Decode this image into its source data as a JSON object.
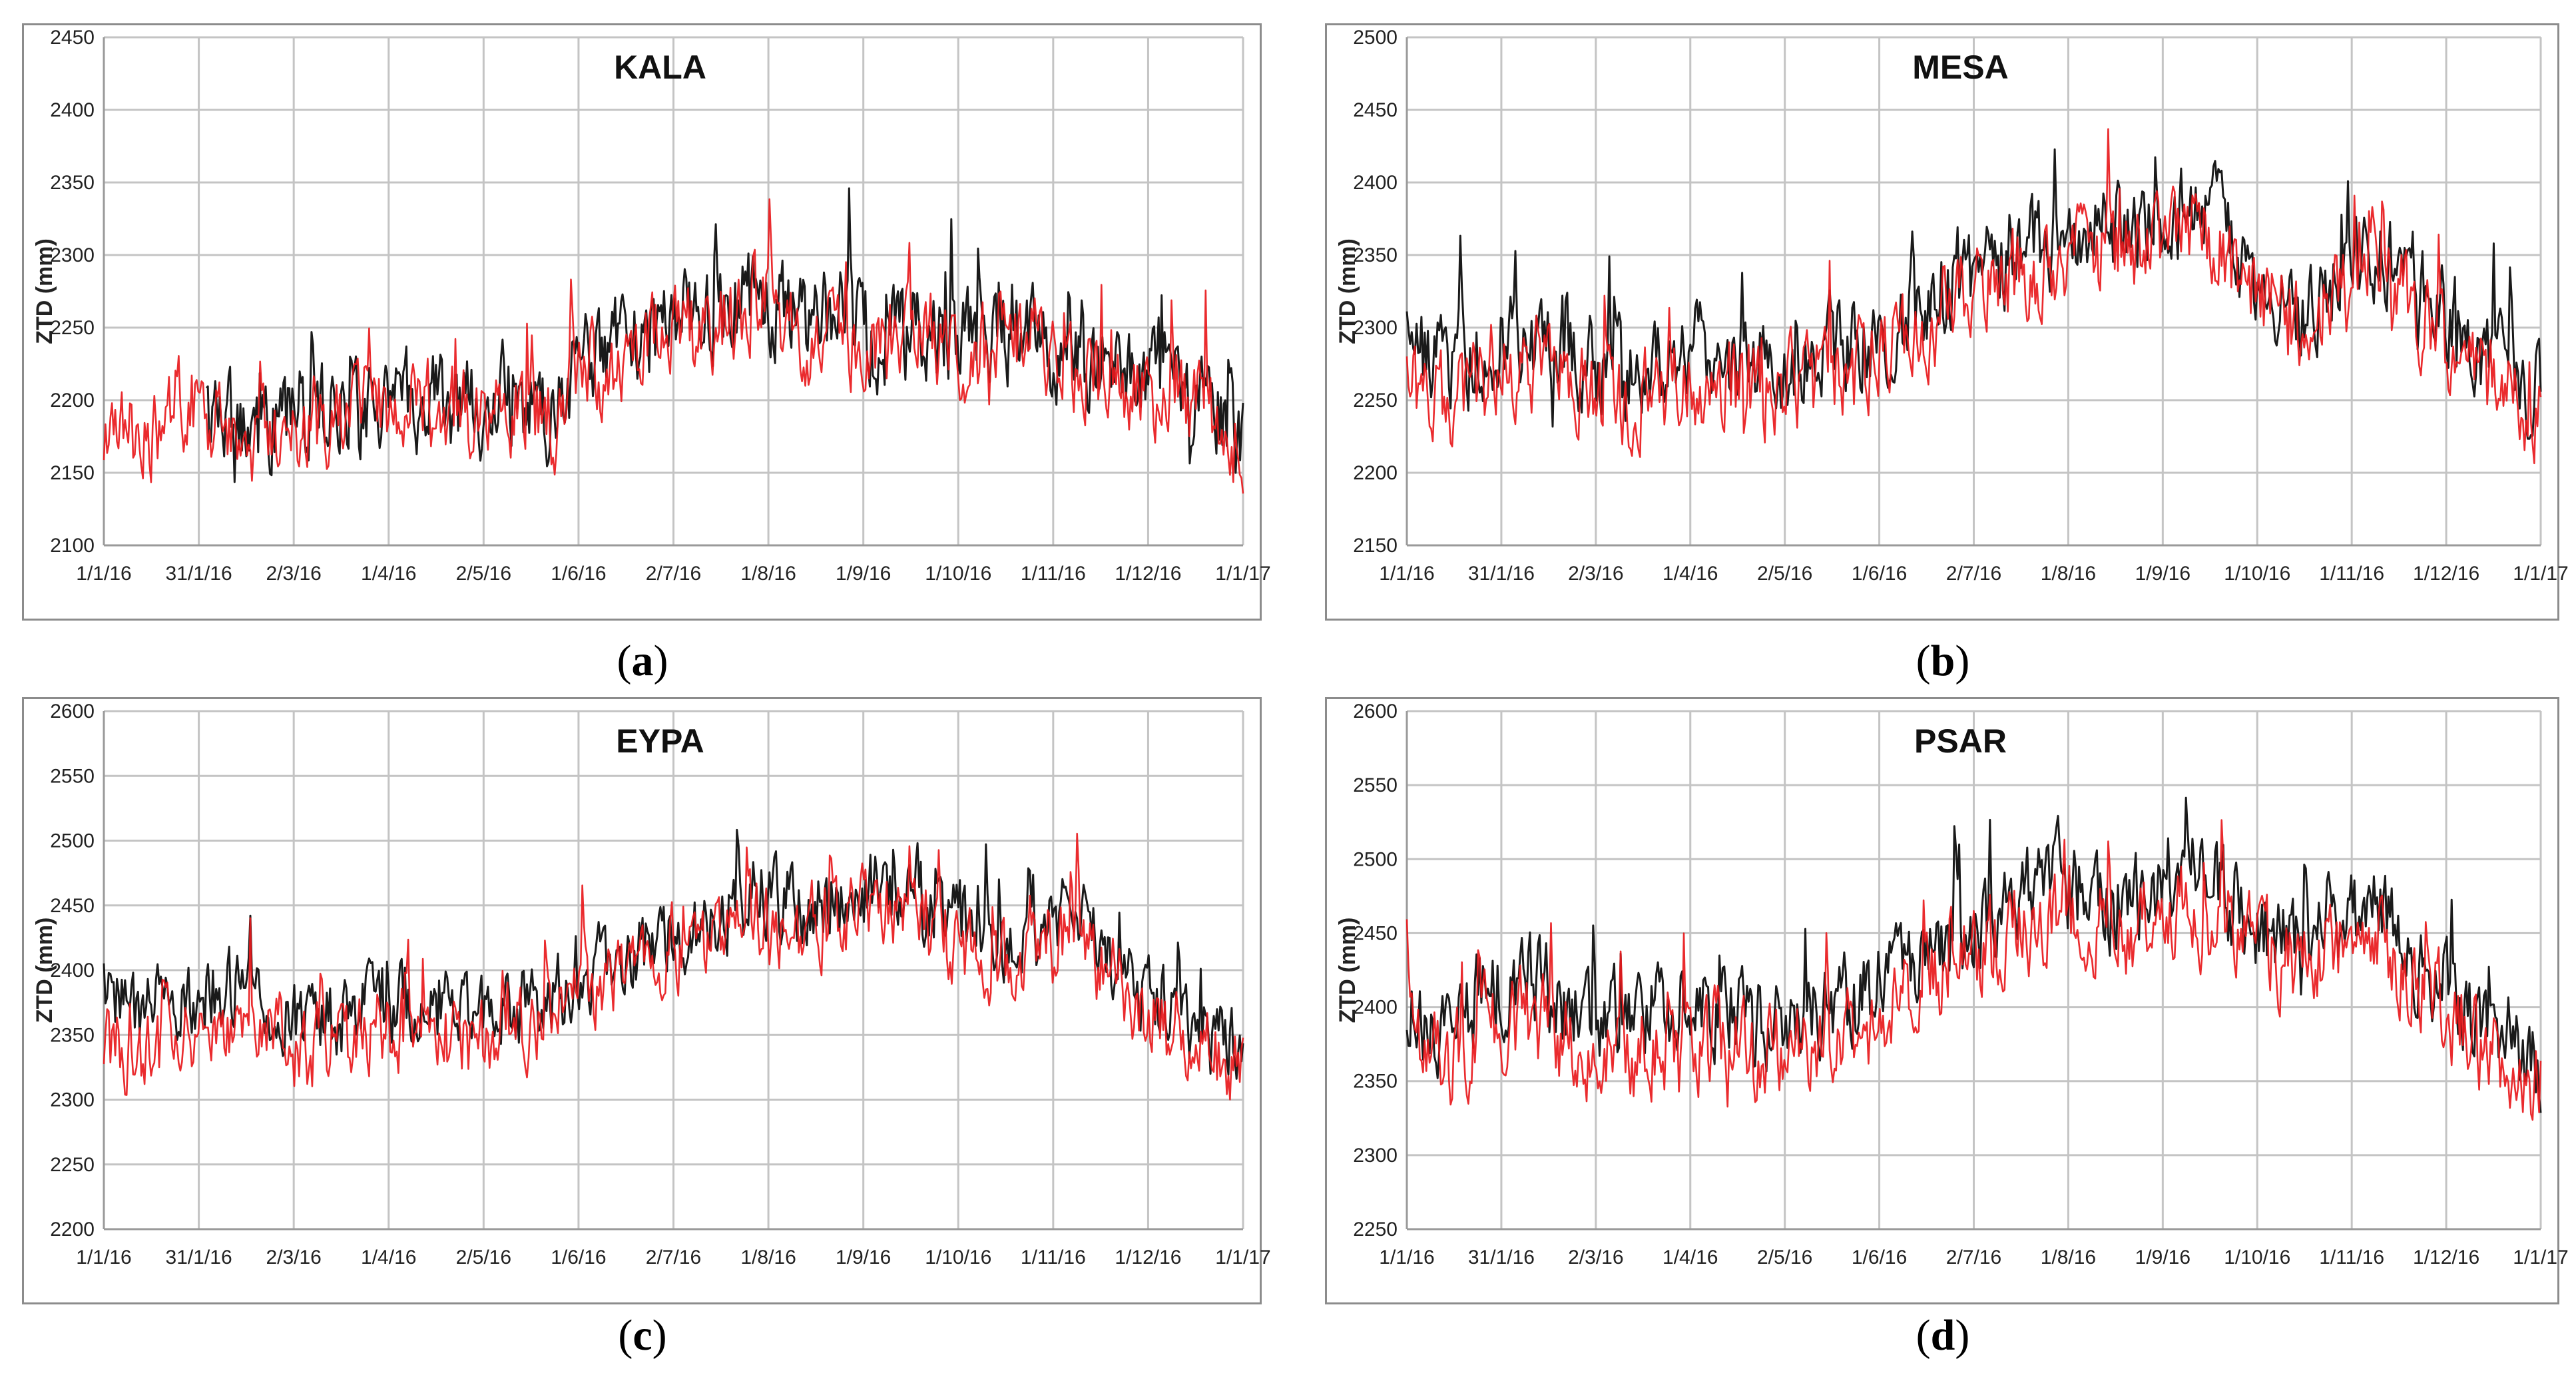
{
  "chart_data": [
    {
      "type": "line",
      "panel": "a",
      "caption_open": "(",
      "caption_letter": "a",
      "caption_close": ")",
      "title": "KALA",
      "ylabel": "ZTD (mm)",
      "xlabel": "",
      "ylim": [
        2100,
        2450
      ],
      "yticks": [
        "2100",
        "2150",
        "2200",
        "2250",
        "2300",
        "2350",
        "2400",
        "2450"
      ],
      "xticks": [
        "1/1/16",
        "31/1/16",
        "2/3/16",
        "1/4/16",
        "2/5/16",
        "1/6/16",
        "2/7/16",
        "1/8/16",
        "1/9/16",
        "1/10/16",
        "1/11/16",
        "1/12/16",
        "1/1/17"
      ],
      "series": [
        {
          "name": "black series",
          "color": "#1a1a1a",
          "start_frac": 0.09,
          "values": [
            2215,
            2225,
            2200,
            2185,
            2180,
            2190,
            2195,
            2205,
            2200,
            2195,
            2200,
            2190,
            2230,
            2245,
            2250,
            2260,
            2275,
            2255,
            2260,
            2240,
            2250,
            2240,
            2245,
            2240,
            2225,
            2215,
            2215,
            2205,
            2180
          ]
        },
        {
          "name": "red series",
          "color": "#e8191c",
          "start_frac": 0.0,
          "values": [
            2185,
            2175,
            2200,
            2180,
            2175,
            2185,
            2190,
            2200,
            2195,
            2190,
            2195,
            2185,
            2220,
            2235,
            2245,
            2255,
            2270,
            2245,
            2250,
            2235,
            2245,
            2235,
            2240,
            2235,
            2220,
            2210,
            2205,
            2195,
            2165
          ]
        }
      ]
    },
    {
      "type": "line",
      "panel": "b",
      "caption_open": "(",
      "caption_letter": "b",
      "caption_close": ")",
      "title": "MESA",
      "ylabel": "ZTD (mm)",
      "xlabel": "",
      "ylim": [
        2150,
        2500
      ],
      "yticks": [
        "2150",
        "2200",
        "2250",
        "2300",
        "2350",
        "2400",
        "2450",
        "2500"
      ],
      "xticks": [
        "1/1/16",
        "31/1/16",
        "2/3/16",
        "1/4/16",
        "2/5/16",
        "1/6/16",
        "2/7/16",
        "1/8/16",
        "1/9/16",
        "1/10/16",
        "1/11/16",
        "1/12/16",
        "1/1/17"
      ],
      "series": [
        {
          "name": "black series",
          "color": "#1a1a1a",
          "start_frac": 0.0,
          "values": [
            2290,
            2270,
            2285,
            2295,
            2280,
            2270,
            2275,
            2285,
            2280,
            2275,
            2280,
            2290,
            2300,
            2320,
            2335,
            2350,
            2360,
            2365,
            2370,
            2380,
            2375,
            2330,
            2310,
            2330,
            2350,
            2330,
            2300,
            2270,
            2250
          ]
        },
        {
          "name": "red series",
          "color": "#e8191c",
          "start_frac": 0.0,
          "values": [
            2260,
            2245,
            2265,
            2275,
            2260,
            2250,
            2255,
            2265,
            2260,
            2255,
            2260,
            2270,
            2285,
            2305,
            2320,
            2335,
            2345,
            2350,
            2350,
            2360,
            2355,
            2320,
            2300,
            2320,
            2340,
            2310,
            2285,
            2255,
            2235
          ]
        }
      ]
    },
    {
      "type": "line",
      "panel": "c",
      "caption_open": "(",
      "caption_letter": "c",
      "caption_close": ")",
      "title": "EYPA",
      "ylabel": "ZTD (mm)",
      "xlabel": "",
      "ylim": [
        2200,
        2600
      ],
      "yticks": [
        "2200",
        "2250",
        "2300",
        "2350",
        "2400",
        "2450",
        "2500",
        "2550",
        "2600"
      ],
      "xticks": [
        "1/1/16",
        "31/1/16",
        "2/3/16",
        "1/4/16",
        "2/5/16",
        "1/6/16",
        "2/7/16",
        "1/8/16",
        "1/9/16",
        "1/10/16",
        "1/11/16",
        "1/12/16",
        "1/1/17"
      ],
      "series": [
        {
          "name": "black series",
          "color": "#1a1a1a",
          "start_frac": 0.0,
          "values": [
            2380,
            2360,
            2375,
            2385,
            2370,
            2360,
            2365,
            2375,
            2370,
            2365,
            2370,
            2380,
            2395,
            2415,
            2430,
            2445,
            2460,
            2450,
            2455,
            2470,
            2460,
            2440,
            2420,
            2430,
            2440,
            2400,
            2380,
            2350,
            2330
          ]
        },
        {
          "name": "red series",
          "color": "#e8191c",
          "start_frac": 0.0,
          "values": [
            2350,
            2330,
            2355,
            2365,
            2345,
            2340,
            2345,
            2355,
            2350,
            2345,
            2350,
            2360,
            2380,
            2400,
            2415,
            2430,
            2440,
            2430,
            2440,
            2455,
            2445,
            2420,
            2405,
            2415,
            2425,
            2385,
            2365,
            2340,
            2320
          ]
        }
      ]
    },
    {
      "type": "line",
      "panel": "d",
      "caption_open": "(",
      "caption_letter": "d",
      "caption_close": ")",
      "title": "PSAR",
      "ylabel": "ZTD (mm)",
      "xlabel": "",
      "ylim": [
        2250,
        2600
      ],
      "yticks": [
        "2250",
        "2300",
        "2350",
        "2400",
        "2450",
        "2500",
        "2550",
        "2600"
      ],
      "xticks": [
        "1/1/16",
        "31/1/16",
        "2/3/16",
        "1/4/16",
        "2/5/16",
        "1/6/16",
        "2/7/16",
        "1/8/16",
        "1/9/16",
        "1/10/16",
        "1/11/16",
        "1/12/16",
        "1/1/17"
      ],
      "series": [
        {
          "name": "black series",
          "color": "#1a1a1a",
          "start_frac": 0.0,
          "values": [
            2400,
            2390,
            2410,
            2420,
            2400,
            2390,
            2395,
            2405,
            2400,
            2390,
            2395,
            2405,
            2420,
            2440,
            2455,
            2470,
            2490,
            2470,
            2475,
            2490,
            2480,
            2460,
            2445,
            2460,
            2470,
            2430,
            2410,
            2380,
            2360
          ]
        },
        {
          "name": "red series",
          "color": "#e8191c",
          "start_frac": 0.0,
          "values": [
            2375,
            2365,
            2385,
            2395,
            2375,
            2365,
            2370,
            2380,
            2375,
            2365,
            2370,
            2380,
            2400,
            2420,
            2435,
            2450,
            2470,
            2450,
            2455,
            2470,
            2460,
            2440,
            2425,
            2440,
            2450,
            2410,
            2390,
            2360,
            2345
          ]
        }
      ]
    }
  ]
}
